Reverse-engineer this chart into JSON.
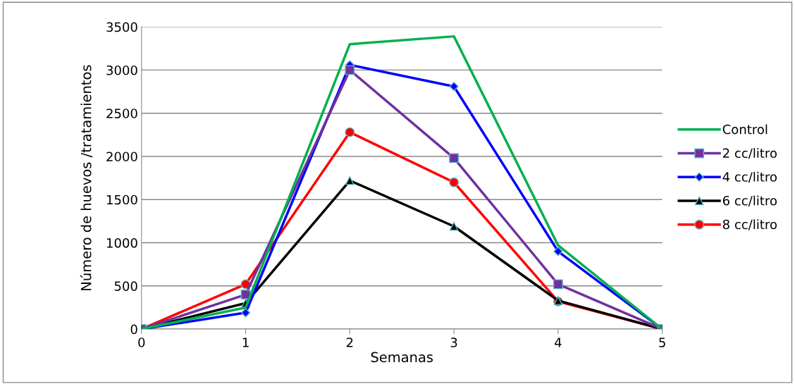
{
  "chart_data": {
    "type": "line",
    "xlabel": "Semanas",
    "ylabel": "Número de huevos /tratamientos",
    "x": [
      0,
      1,
      2,
      3,
      4,
      5
    ],
    "xlim": [
      0,
      5
    ],
    "xticks": [
      0,
      1,
      2,
      3,
      4,
      5
    ],
    "ylim": [
      0,
      3500
    ],
    "yticks": [
      0,
      500,
      1000,
      1500,
      2000,
      2500,
      3000,
      3500
    ],
    "grid": "y",
    "legend": "right",
    "series": [
      {
        "name": "Control",
        "color": "#00b050",
        "marker": "none",
        "values": [
          0,
          250,
          3300,
          3390,
          970,
          0
        ]
      },
      {
        "name": "2 cc/litro",
        "color": "#7030a0",
        "marker": "square",
        "values": [
          0,
          400,
          3000,
          1980,
          520,
          0
        ]
      },
      {
        "name": "4 cc/litro",
        "color": "#0000ff",
        "marker": "diamond",
        "values": [
          0,
          190,
          3060,
          2810,
          900,
          0
        ]
      },
      {
        "name": "6 cc/litro",
        "color": "#000000",
        "marker": "triangle",
        "values": [
          0,
          300,
          1720,
          1190,
          330,
          0
        ]
      },
      {
        "name": "8 cc/litro",
        "color": "#ff0000",
        "marker": "circle",
        "values": [
          0,
          520,
          2280,
          1700,
          320,
          0
        ]
      }
    ]
  }
}
